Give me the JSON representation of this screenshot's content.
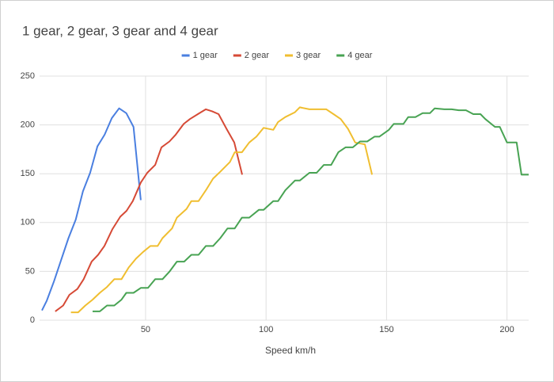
{
  "chart_data": {
    "type": "line",
    "title": "1 gear, 2 gear, 3 gear and 4 gear",
    "x_label": "Speed km/h",
    "xlim": [
      6,
      209
    ],
    "ylim": [
      0,
      250
    ],
    "xticks": [
      50,
      100,
      150,
      200
    ],
    "yticks": [
      0,
      50,
      100,
      150,
      200,
      250
    ],
    "grid": true,
    "legend": "top",
    "series": [
      {
        "name": "1 gear",
        "color": "#4a7fe0",
        "x": [
          7,
          9,
          12,
          15,
          18,
          21,
          24,
          27,
          30,
          33,
          36,
          39,
          42,
          45,
          48
        ],
        "values": [
          10,
          20,
          40,
          62,
          84,
          103,
          132,
          151,
          178,
          190,
          207,
          217,
          212,
          198,
          123
        ]
      },
      {
        "name": "2 gear",
        "color": "#d64a36",
        "x": [
          12.5,
          15.8,
          18.4,
          21.7,
          24.3,
          27.6,
          30.3,
          32.9,
          36.2,
          39.5,
          42.1,
          44.7,
          48,
          50.7,
          54,
          56.6,
          59.9,
          62.5,
          65.8,
          68.4,
          71.7,
          75,
          77.6,
          80.3,
          83.6,
          86.8,
          90.1
        ],
        "values": [
          9,
          15,
          26,
          32,
          42,
          60,
          67,
          76,
          93,
          106,
          112,
          122,
          141,
          151,
          159,
          177,
          183,
          190,
          201,
          206,
          211,
          216,
          214,
          211,
          196,
          182,
          149
        ]
      },
      {
        "name": "3 gear",
        "color": "#f0be30",
        "x": [
          19,
          22,
          25,
          28,
          31,
          34,
          37,
          40,
          43,
          46,
          49,
          52,
          55,
          57,
          61,
          63,
          67,
          69,
          72,
          75,
          78,
          81,
          85,
          87,
          90,
          93,
          96,
          99,
          103,
          105,
          108,
          112,
          114,
          118,
          121,
          125,
          128,
          131,
          134,
          137,
          141,
          144
        ],
        "values": [
          8,
          8,
          15,
          21,
          28,
          34,
          42,
          42,
          54,
          63,
          70,
          76,
          76,
          84,
          94,
          105,
          114,
          122,
          122,
          133,
          145,
          152,
          162,
          172,
          172,
          182,
          188,
          197,
          195,
          203,
          208,
          213,
          218,
          216,
          216,
          216,
          211,
          206,
          196,
          182,
          180,
          149
        ]
      },
      {
        "name": "4 gear",
        "color": "#48a353",
        "x": [
          28,
          31,
          34,
          37,
          40,
          42,
          45,
          48,
          51,
          54,
          57,
          60,
          63,
          66,
          69,
          72,
          75,
          78,
          81,
          84,
          87,
          90,
          93,
          97,
          99,
          103,
          105,
          108,
          112,
          114,
          118,
          121,
          124,
          127,
          130,
          133,
          136,
          139,
          142,
          145,
          147,
          151,
          153,
          157,
          159,
          162,
          165,
          168,
          170,
          174,
          177,
          180,
          183,
          186,
          189,
          191,
          195,
          197,
          200,
          204,
          206,
          209
        ],
        "values": [
          9,
          9,
          15,
          15,
          21,
          28,
          28,
          33,
          33,
          42,
          42,
          50,
          60,
          60,
          67,
          67,
          76,
          76,
          84,
          94,
          94,
          105,
          105,
          113,
          113,
          122,
          122,
          133,
          143,
          143,
          151,
          151,
          159,
          159,
          172,
          177,
          177,
          183,
          183,
          188,
          188,
          195,
          201,
          201,
          208,
          208,
          212,
          212,
          217,
          216,
          216,
          215,
          215,
          211,
          211,
          206,
          198,
          198,
          182,
          182,
          149,
          149
        ]
      }
    ]
  }
}
